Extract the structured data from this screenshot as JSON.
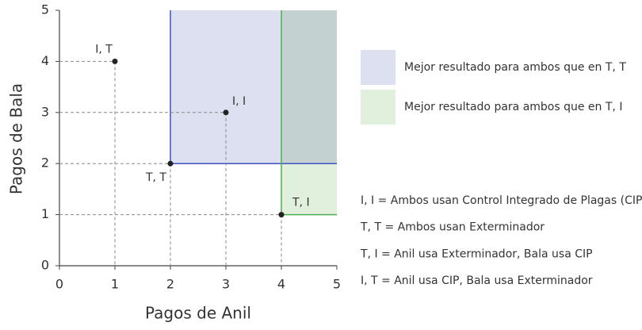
{
  "chart_data": {
    "type": "scatter",
    "x_label": "Pagos de Anil",
    "y_label": "Pagos de Bala",
    "xlim": [
      0,
      5
    ],
    "ylim": [
      0,
      5
    ],
    "xticks": [
      0,
      1,
      2,
      3,
      4,
      5
    ],
    "yticks": [
      0,
      1,
      2,
      3,
      4,
      5
    ],
    "x": [
      1,
      3,
      2,
      4
    ],
    "y": [
      4,
      3,
      2,
      1
    ],
    "point_labels": [
      "I, T",
      "I, I",
      "T, T",
      "T, I"
    ],
    "point_color": "#222222",
    "regions": [
      {
        "name": "Mejor resultado para ambos que en T, T",
        "color": "#dde0f1",
        "line_color": "#3f51c0",
        "x": [
          2,
          5
        ],
        "y": [
          2,
          5
        ]
      },
      {
        "name": "Mejor resultado para ambos que en T, I",
        "color": "#e1efdd",
        "line_color": "#4caf50",
        "x": [
          4,
          5
        ],
        "y": [
          1,
          5
        ]
      }
    ],
    "notes": [
      "I, I = Ambos usan Control Integrado de Plagas (CIP)",
      "T, T = Ambos usan Exterminador",
      "T, I = Anil usa Exterminador, Bala usa CIP",
      "I, T = Anil usa CIP, Bala usa Exterminador"
    ]
  }
}
